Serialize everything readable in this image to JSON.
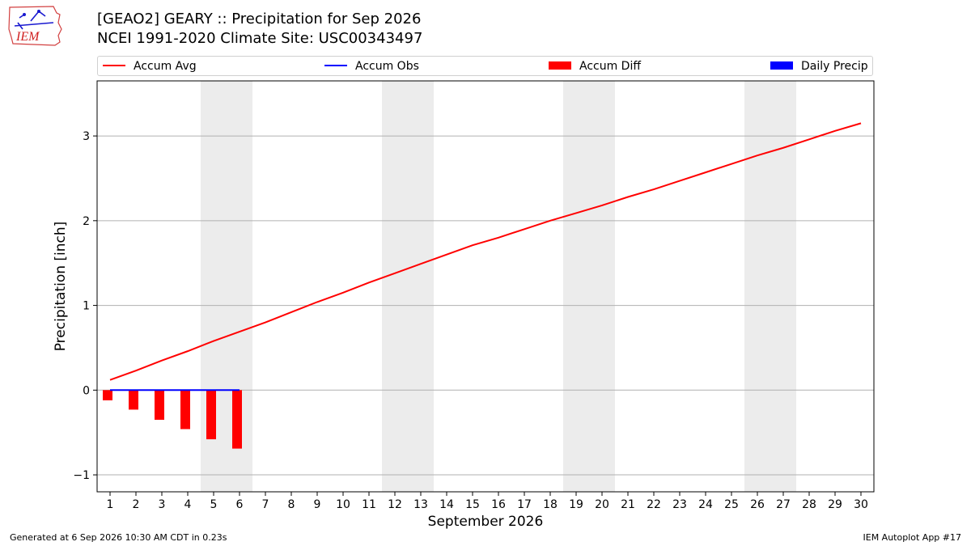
{
  "header": {
    "title_line1": "[GEAO2] GEARY :: Precipitation for Sep 2026",
    "title_line2": "NCEI 1991-2020 Climate Site: USC00343497",
    "logo_text": "IEM"
  },
  "legend": {
    "items": [
      {
        "label": "Accum Avg",
        "kind": "line",
        "color": "#ff0000"
      },
      {
        "label": "Accum Obs",
        "kind": "line",
        "color": "#0000ff"
      },
      {
        "label": "Accum Diff",
        "kind": "patch",
        "color": "#ff0000"
      },
      {
        "label": "Daily Precip",
        "kind": "patch",
        "color": "#0000ff"
      }
    ]
  },
  "footer": {
    "left": "Generated at 6 Sep 2026 10:30 AM CDT in 0.23s",
    "right": "IEM Autoplot App #17"
  },
  "chart_data": {
    "type": "line",
    "title": "[GEAO2] GEARY :: Precipitation for Sep 2026",
    "subtitle": "NCEI 1991-2020 Climate Site: USC00343497",
    "xlabel": "September 2026",
    "ylabel": "Precipitation [inch]",
    "x": [
      1,
      2,
      3,
      4,
      5,
      6,
      7,
      8,
      9,
      10,
      11,
      12,
      13,
      14,
      15,
      16,
      17,
      18,
      19,
      20,
      21,
      22,
      23,
      24,
      25,
      26,
      27,
      28,
      29,
      30
    ],
    "xlim": [
      0.5,
      30.5
    ],
    "ylim": [
      -1.2,
      3.65
    ],
    "yticks": [
      -1,
      0,
      1,
      2,
      3
    ],
    "grid": "y",
    "legend_position": "top",
    "weekend_shading": [
      [
        4.5,
        6.5
      ],
      [
        11.5,
        13.5
      ],
      [
        18.5,
        20.5
      ],
      [
        25.5,
        27.5
      ]
    ],
    "series": [
      {
        "name": "Accum Avg",
        "type": "line",
        "color": "#ff0000",
        "x": [
          1,
          2,
          3,
          4,
          5,
          6,
          7,
          8,
          9,
          10,
          11,
          12,
          13,
          14,
          15,
          16,
          17,
          18,
          19,
          20,
          21,
          22,
          23,
          24,
          25,
          26,
          27,
          28,
          29,
          30
        ],
        "values": [
          0.12,
          0.23,
          0.35,
          0.46,
          0.58,
          0.69,
          0.8,
          0.92,
          1.04,
          1.15,
          1.27,
          1.38,
          1.49,
          1.6,
          1.71,
          1.8,
          1.9,
          2.0,
          2.09,
          2.18,
          2.28,
          2.37,
          2.47,
          2.57,
          2.67,
          2.77,
          2.86,
          2.96,
          3.06,
          3.15
        ]
      },
      {
        "name": "Accum Obs",
        "type": "line",
        "color": "#0000ff",
        "x": [
          1,
          2,
          3,
          4,
          5,
          6
        ],
        "values": [
          0,
          0,
          0,
          0,
          0,
          0
        ]
      },
      {
        "name": "Accum Diff",
        "type": "bar",
        "color": "#ff0000",
        "x": [
          1,
          2,
          3,
          4,
          5,
          6
        ],
        "values": [
          -0.12,
          -0.23,
          -0.35,
          -0.46,
          -0.58,
          -0.69
        ]
      },
      {
        "name": "Daily Precip",
        "type": "bar",
        "color": "#0000ff",
        "x": [
          1,
          2,
          3,
          4,
          5,
          6
        ],
        "values": [
          0,
          0,
          0,
          0,
          0,
          0
        ]
      }
    ]
  }
}
